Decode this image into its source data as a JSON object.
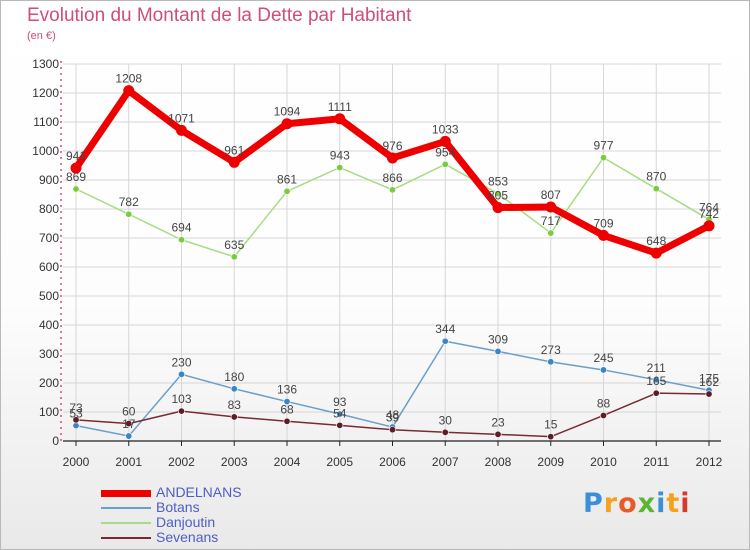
{
  "title": "Evolution du Montant de la Dette par Habitant",
  "subtitle": "(en €)",
  "brand": {
    "letters": [
      "P",
      "r",
      "o",
      "x",
      "i",
      "t",
      "i"
    ],
    "colors": [
      "#3b8fd6",
      "#f4a21e",
      "#e95a2a",
      "#59b532",
      "#3b8fd6",
      "#f4a21e",
      "#d63a2a"
    ]
  },
  "colors": {
    "grid": "#d6d6d6",
    "axis": "#222222",
    "tick_text": "#333333",
    "value_text": "#444444",
    "left_dash": "#d64f75"
  },
  "chart_data": {
    "type": "line",
    "categories": [
      "2000",
      "2001",
      "2002",
      "2003",
      "2004",
      "2005",
      "2006",
      "2007",
      "2008",
      "2009",
      "2010",
      "2011",
      "2012"
    ],
    "yticks": [
      "0",
      "100",
      "200",
      "300",
      "400",
      "500",
      "600",
      "700",
      "800",
      "900",
      "1000",
      "1100",
      "1200",
      "1300"
    ],
    "ylim": [
      0,
      1300
    ],
    "grid": true,
    "legend_position": "bottom-left",
    "series": [
      {
        "name": "ANDELNANS",
        "color": "#ee0000",
        "line_width": 7,
        "marker_radius": 5.5,
        "marker_fill": "#ee0000",
        "values": [
          941,
          1208,
          1071,
          961,
          1094,
          1111,
          976,
          1033,
          805,
          807,
          709,
          648,
          742
        ]
      },
      {
        "name": "Botans",
        "color": "#6a9fca",
        "line_width": 1.5,
        "marker_radius": 3.2,
        "marker_fill": "#3a85c8",
        "values": [
          53,
          17,
          230,
          180,
          136,
          93,
          48,
          344,
          309,
          273,
          245,
          211,
          175
        ]
      },
      {
        "name": "Danjoutin",
        "color": "#a8dc84",
        "line_width": 1.5,
        "marker_radius": 3.2,
        "marker_fill": "#7acc3f",
        "values": [
          869,
          782,
          694,
          635,
          861,
          943,
          866,
          954,
          853,
          717,
          977,
          870,
          764
        ]
      },
      {
        "name": "Sevenans",
        "color": "#7a2a32",
        "line_width": 1.5,
        "marker_radius": 3.2,
        "marker_fill": "#5e1d25",
        "values": [
          73,
          60,
          103,
          83,
          68,
          54,
          39,
          30,
          23,
          15,
          88,
          165,
          162
        ]
      }
    ]
  }
}
